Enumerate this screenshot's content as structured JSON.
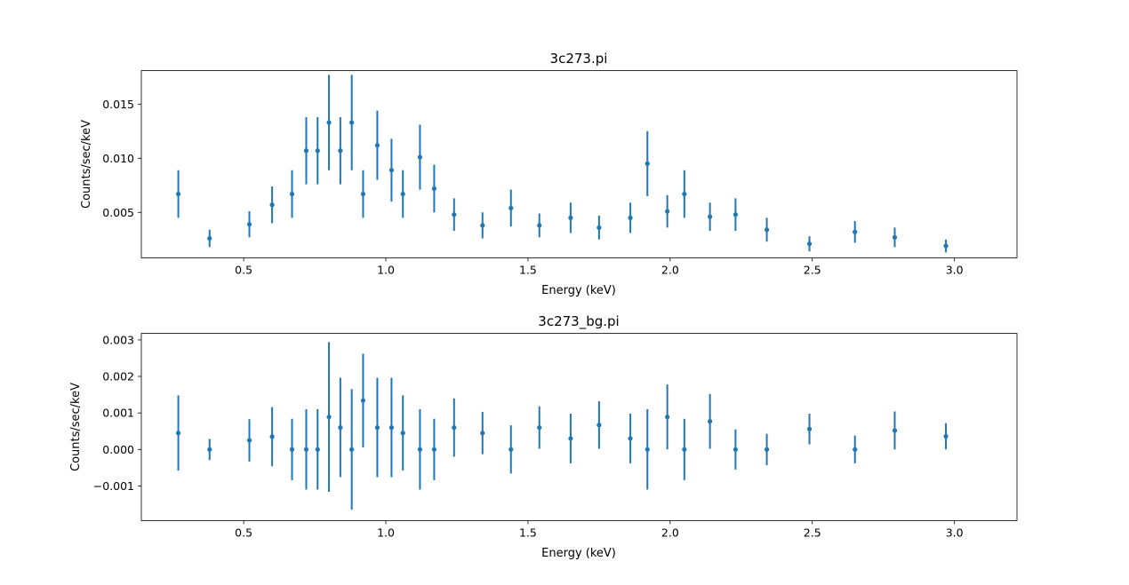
{
  "chart_data": [
    {
      "type": "scatter",
      "title": "3c273.pi",
      "xlabel": "Energy (keV)",
      "ylabel": "Counts/sec/keV",
      "xlim": [
        0.14,
        3.22
      ],
      "ylim": [
        0.0008,
        0.0181
      ],
      "xticks": [
        0.5,
        1.0,
        1.5,
        2.0,
        2.5,
        3.0
      ],
      "xtick_labels": [
        "0.5",
        "1.0",
        "1.5",
        "2.0",
        "2.5",
        "3.0"
      ],
      "yticks": [
        0.005,
        0.01,
        0.015
      ],
      "ytick_labels": [
        "0.005",
        "0.010",
        "0.015"
      ],
      "color": "#1f77b4",
      "series": [
        {
          "name": "3c273.pi",
          "x": [
            0.27,
            0.38,
            0.52,
            0.6,
            0.67,
            0.72,
            0.76,
            0.8,
            0.84,
            0.88,
            0.92,
            0.97,
            1.02,
            1.06,
            1.12,
            1.17,
            1.24,
            1.34,
            1.44,
            1.54,
            1.65,
            1.75,
            1.86,
            1.92,
            1.99,
            2.05,
            2.14,
            2.23,
            2.34,
            2.49,
            2.65,
            2.79,
            2.97
          ],
          "y": [
            0.0067,
            0.0026,
            0.0039,
            0.0057,
            0.0067,
            0.0107,
            0.0107,
            0.0133,
            0.0107,
            0.0133,
            0.0067,
            0.0112,
            0.0089,
            0.0067,
            0.0101,
            0.0072,
            0.0048,
            0.0038,
            0.0054,
            0.0038,
            0.0045,
            0.0036,
            0.0045,
            0.0095,
            0.0051,
            0.0067,
            0.0046,
            0.0048,
            0.0034,
            0.0021,
            0.0032,
            0.0027,
            0.0019
          ],
          "yerr": [
            0.0022,
            0.0008,
            0.0012,
            0.0017,
            0.0022,
            0.0031,
            0.0031,
            0.0044,
            0.0031,
            0.0044,
            0.0022,
            0.0032,
            0.0029,
            0.0022,
            0.003,
            0.0022,
            0.0015,
            0.0012,
            0.0017,
            0.0011,
            0.0014,
            0.0011,
            0.0014,
            0.003,
            0.0015,
            0.0022,
            0.0013,
            0.0015,
            0.0011,
            0.0007,
            0.001,
            0.0009,
            0.0006
          ]
        }
      ]
    },
    {
      "type": "scatter",
      "title": "3c273_bg.pi",
      "xlabel": "Energy (keV)",
      "ylabel": "Counts/sec/keV",
      "xlim": [
        0.14,
        3.22
      ],
      "ylim": [
        -0.00195,
        0.00318
      ],
      "xticks": [
        0.5,
        1.0,
        1.5,
        2.0,
        2.5,
        3.0
      ],
      "xtick_labels": [
        "0.5",
        "1.0",
        "1.5",
        "2.0",
        "2.5",
        "3.0"
      ],
      "yticks": [
        -0.001,
        0.0,
        0.001,
        0.002,
        0.003
      ],
      "ytick_labels": [
        "−0.001",
        "0.000",
        "0.001",
        "0.002",
        "0.003"
      ],
      "color": "#1f77b4",
      "series": [
        {
          "name": "3c273_bg.pi",
          "x": [
            0.27,
            0.38,
            0.52,
            0.6,
            0.67,
            0.72,
            0.76,
            0.8,
            0.84,
            0.88,
            0.92,
            0.97,
            1.02,
            1.06,
            1.12,
            1.17,
            1.24,
            1.34,
            1.44,
            1.54,
            1.65,
            1.75,
            1.86,
            1.92,
            1.99,
            2.05,
            2.14,
            2.23,
            2.34,
            2.49,
            2.65,
            2.79,
            2.97
          ],
          "y": [
            0.00045,
            0.0,
            0.00025,
            0.00035,
            0.0,
            0.0,
            0.0,
            0.00089,
            0.0006,
            0.0,
            0.00134,
            0.0006,
            0.0006,
            0.00045,
            0.0,
            0.0,
            0.0006,
            0.00045,
            0.0,
            0.0006,
            0.0003,
            0.00067,
            0.0003,
            0.0,
            0.00089,
            0.0,
            0.00077,
            0.0,
            0.0,
            0.00056,
            0.0,
            0.00052,
            0.00036
          ],
          "yerr": [
            0.00103,
            0.00029,
            0.00058,
            0.00081,
            0.00084,
            0.0011,
            0.0011,
            0.00205,
            0.00136,
            0.00165,
            0.00128,
            0.00136,
            0.00136,
            0.00103,
            0.0011,
            0.00084,
            0.0008,
            0.00058,
            0.00066,
            0.00058,
            0.00068,
            0.00065,
            0.00068,
            0.0011,
            0.00089,
            0.00084,
            0.00075,
            0.00055,
            0.00043,
            0.00042,
            0.00038,
            0.00052,
            0.00036
          ]
        }
      ]
    }
  ]
}
